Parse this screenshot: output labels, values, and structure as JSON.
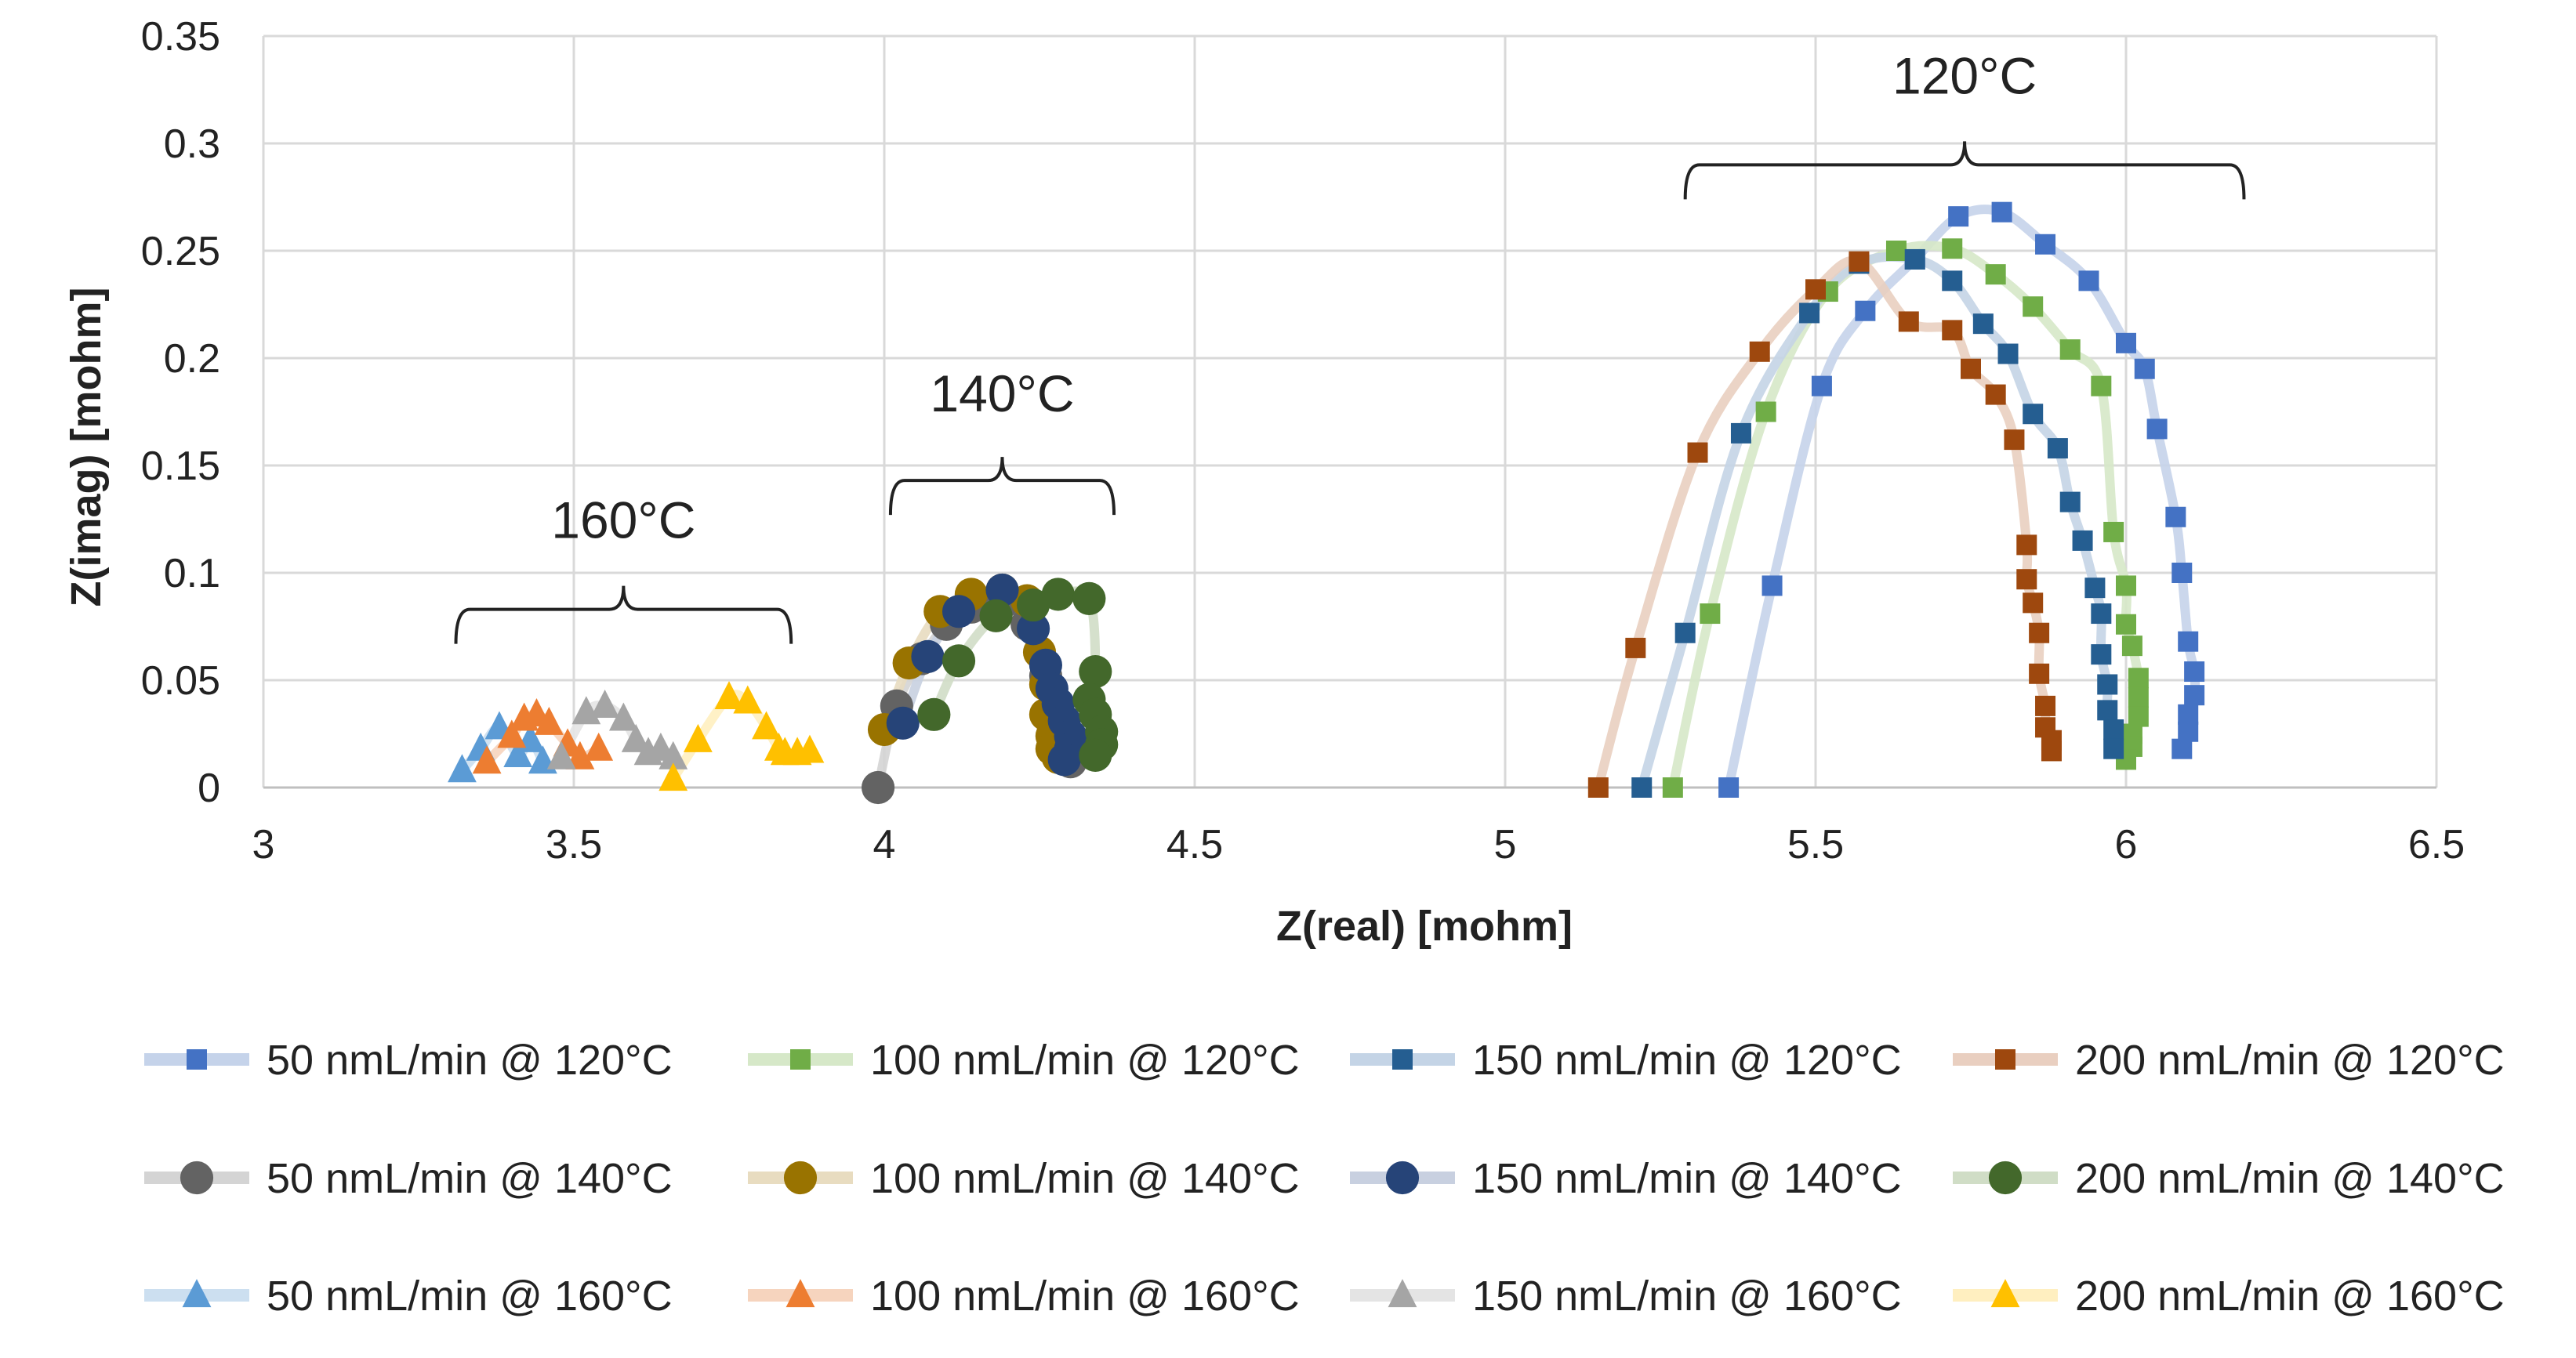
{
  "chart_data": {
    "type": "scatter",
    "xlabel": "Z(real) [mohm]",
    "ylabel": "Z(imag) [mohm]",
    "xlim": [
      3,
      6.5
    ],
    "ylim": [
      0,
      0.35
    ],
    "xticks": [
      3,
      3.5,
      4,
      4.5,
      5,
      5.5,
      6,
      6.5
    ],
    "yticks": [
      0,
      0.05,
      0.1,
      0.15,
      0.2,
      0.25,
      0.3,
      0.35
    ],
    "xtick_labels": [
      "3",
      "3.5",
      "4",
      "4.5",
      "5",
      "5.5",
      "6",
      "6.5"
    ],
    "ytick_labels": [
      "0",
      "0.05",
      "0.1",
      "0.15",
      "0.2",
      "0.25",
      "0.3",
      "0.35"
    ],
    "grid": true,
    "legend_position": "bottom",
    "annotations": [
      {
        "text": "120°C",
        "x_range": [
          5.29,
          6.19
        ],
        "y": 0.29,
        "label_y": 0.332
      },
      {
        "text": "140°C",
        "x_range": [
          4.01,
          4.37
        ],
        "y": 0.143,
        "label_y": 0.184
      },
      {
        "text": "160°C",
        "x_range": [
          3.31,
          3.85
        ],
        "y": 0.083,
        "label_y": 0.125
      }
    ],
    "series": [
      {
        "name": "50 nmL/min @ 120°C",
        "marker": "square",
        "color": "#4472C4",
        "line_color": "#C5D3EA",
        "x": [
          5.36,
          5.43,
          5.51,
          5.58,
          5.66,
          5.73,
          5.8,
          5.87,
          5.94,
          6.0,
          6.03,
          6.05,
          6.08,
          6.09,
          6.1,
          6.11,
          6.11,
          6.1,
          6.1,
          6.09
        ],
        "y": [
          0.0,
          0.094,
          0.187,
          0.222,
          0.246,
          0.266,
          0.268,
          0.253,
          0.236,
          0.207,
          0.195,
          0.167,
          0.126,
          0.1,
          0.068,
          0.054,
          0.043,
          0.034,
          0.026,
          0.018
        ]
      },
      {
        "name": "100 nmL/min @ 120°C",
        "marker": "square",
        "color": "#70AD47",
        "line_color": "#D6E8C8",
        "x": [
          5.27,
          5.33,
          5.42,
          5.52,
          5.63,
          5.72,
          5.79,
          5.85,
          5.91,
          5.96,
          5.98,
          6.0,
          6.0,
          6.01,
          6.02,
          6.02,
          6.02,
          6.01,
          6.01,
          6.0
        ],
        "y": [
          0.0,
          0.081,
          0.175,
          0.231,
          0.25,
          0.251,
          0.239,
          0.224,
          0.204,
          0.187,
          0.119,
          0.094,
          0.076,
          0.066,
          0.051,
          0.042,
          0.033,
          0.025,
          0.019,
          0.013
        ]
      },
      {
        "name": "150 nmL/min @ 120°C",
        "marker": "square",
        "color": "#255E91",
        "line_color": "#C4D4E6",
        "x": [
          5.22,
          5.29,
          5.38,
          5.49,
          5.57,
          5.66,
          5.72,
          5.77,
          5.81,
          5.85,
          5.89,
          5.91,
          5.93,
          5.95,
          5.96,
          5.96,
          5.97,
          5.97,
          5.98,
          5.98
        ],
        "y": [
          0.0,
          0.072,
          0.165,
          0.221,
          0.244,
          0.246,
          0.236,
          0.216,
          0.202,
          0.174,
          0.158,
          0.133,
          0.115,
          0.093,
          0.081,
          0.062,
          0.048,
          0.036,
          0.027,
          0.018
        ]
      },
      {
        "name": "200 nmL/min @ 120°C",
        "marker": "square",
        "color": "#9E480E",
        "line_color": "#E9CFC0",
        "x": [
          5.15,
          5.21,
          5.31,
          5.41,
          5.5,
          5.57,
          5.65,
          5.72,
          5.75,
          5.79,
          5.82,
          5.84,
          5.84,
          5.85,
          5.86,
          5.86,
          5.87,
          5.87,
          5.88,
          5.88
        ],
        "y": [
          0.0,
          0.065,
          0.156,
          0.203,
          0.232,
          0.245,
          0.217,
          0.213,
          0.195,
          0.183,
          0.162,
          0.113,
          0.097,
          0.086,
          0.072,
          0.053,
          0.038,
          0.028,
          0.022,
          0.017
        ]
      },
      {
        "name": "50 nmL/min @ 140°C",
        "marker": "circle",
        "color": "#636363",
        "line_color": "#D4D4D4",
        "x": [
          3.99,
          4.02,
          4.06,
          4.1,
          4.14,
          4.19,
          4.23,
          4.26,
          4.28,
          4.29,
          4.3,
          4.3
        ],
        "y": [
          0.0,
          0.038,
          0.06,
          0.076,
          0.084,
          0.086,
          0.076,
          0.052,
          0.036,
          0.024,
          0.016,
          0.012
        ]
      },
      {
        "name": "100 nmL/min @ 140°C",
        "marker": "circle",
        "color": "#997300",
        "line_color": "#E8DCC0",
        "x": [
          4.0,
          4.04,
          4.09,
          4.14,
          4.19,
          4.23,
          4.25,
          4.26,
          4.26,
          4.27,
          4.27,
          4.28
        ],
        "y": [
          0.027,
          0.058,
          0.082,
          0.09,
          0.092,
          0.087,
          0.063,
          0.048,
          0.034,
          0.024,
          0.018,
          0.014
        ]
      },
      {
        "name": "150 nmL/min @ 140°C",
        "marker": "circle",
        "color": "#264478",
        "line_color": "#C8D0E0",
        "x": [
          4.03,
          4.07,
          4.12,
          4.19,
          4.24,
          4.26,
          4.27,
          4.28,
          4.29,
          4.3,
          4.3,
          4.29
        ],
        "y": [
          0.03,
          0.061,
          0.082,
          0.092,
          0.074,
          0.057,
          0.046,
          0.039,
          0.031,
          0.024,
          0.018,
          0.013
        ]
      },
      {
        "name": "200 nmL/min @ 140°C",
        "marker": "circle",
        "color": "#43682B",
        "line_color": "#D0DDC6",
        "x": [
          4.08,
          4.12,
          4.18,
          4.24,
          4.28,
          4.33,
          4.34,
          4.33,
          4.34,
          4.35,
          4.35,
          4.34
        ],
        "y": [
          0.034,
          0.059,
          0.08,
          0.085,
          0.09,
          0.088,
          0.054,
          0.041,
          0.034,
          0.026,
          0.02,
          0.015
        ]
      },
      {
        "name": "50 nmL/min @ 160°C",
        "marker": "triangle",
        "color": "#5B9BD5",
        "line_color": "#CCDFF0",
        "x": [
          3.32,
          3.35,
          3.38,
          3.41,
          3.43,
          3.45
        ],
        "y": [
          0.008,
          0.018,
          0.028,
          0.015,
          0.022,
          0.012
        ]
      },
      {
        "name": "100 nmL/min @ 160°C",
        "marker": "triangle",
        "color": "#ED7D31",
        "line_color": "#F6D4BE",
        "x": [
          3.36,
          3.4,
          3.42,
          3.44,
          3.46,
          3.49,
          3.51,
          3.54
        ],
        "y": [
          0.012,
          0.024,
          0.032,
          0.034,
          0.03,
          0.02,
          0.014,
          0.018
        ]
      },
      {
        "name": "150 nmL/min @ 160°C",
        "marker": "triangle",
        "color": "#A5A5A5",
        "line_color": "#E4E4E4",
        "x": [
          3.48,
          3.52,
          3.55,
          3.58,
          3.6,
          3.62,
          3.64,
          3.66
        ],
        "y": [
          0.014,
          0.035,
          0.038,
          0.032,
          0.022,
          0.016,
          0.018,
          0.014
        ]
      },
      {
        "name": "200 nmL/min @ 160°C",
        "marker": "triangle",
        "color": "#FFC000",
        "line_color": "#FFEFC0",
        "x": [
          3.66,
          3.7,
          3.75,
          3.78,
          3.81,
          3.83,
          3.84,
          3.86,
          3.88
        ],
        "y": [
          0.004,
          0.022,
          0.042,
          0.04,
          0.028,
          0.018,
          0.016,
          0.016,
          0.017
        ]
      }
    ]
  }
}
